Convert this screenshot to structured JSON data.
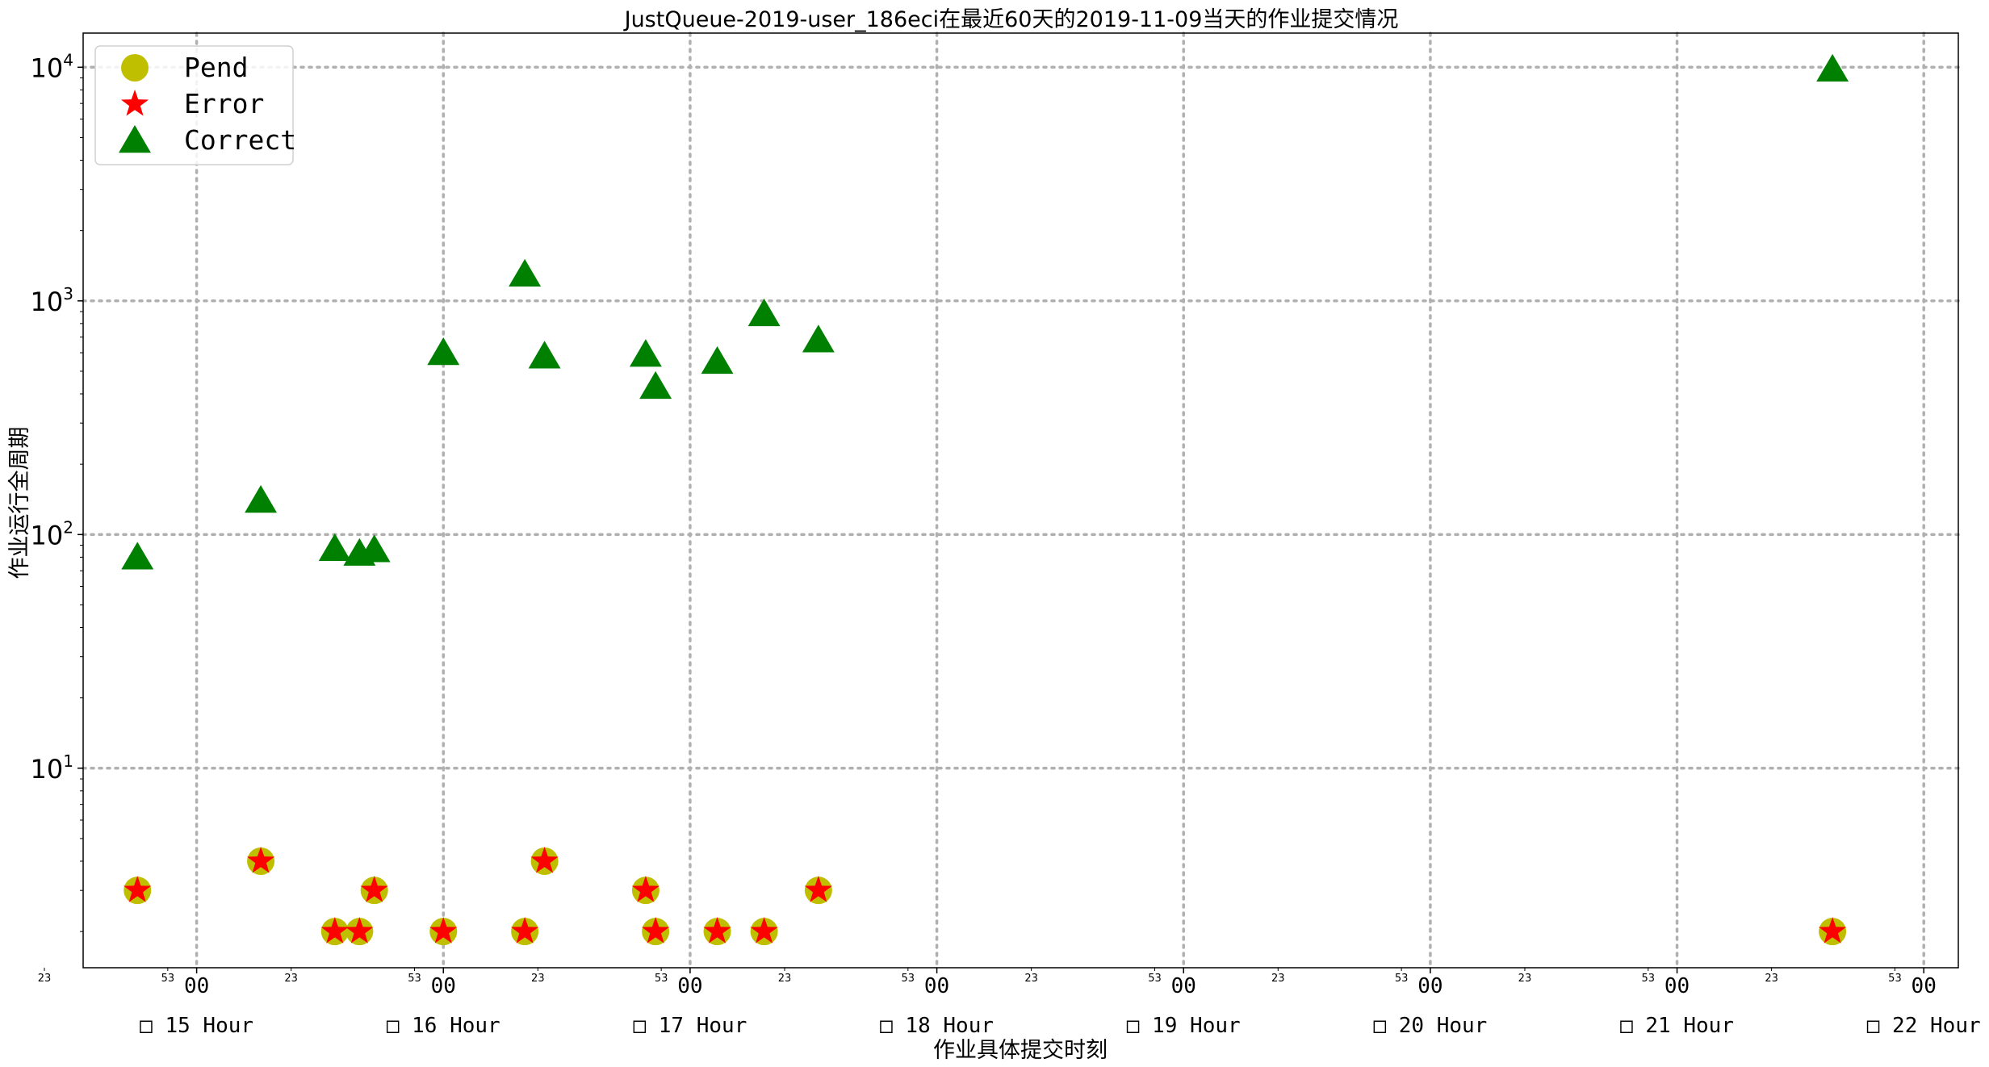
{
  "chart_data": {
    "type": "scatter",
    "title": "JustQueue-2019-user_186eci在最近60天的2019-11-09当天的作业提交情况",
    "xlabel": "作业具体提交时刻",
    "ylabel": "作业运行全周期",
    "yscale": "log",
    "ylim": [
      1.4,
      14000
    ],
    "xlim": [
      14.54,
      22.14
    ],
    "y_ticks": [
      {
        "value": 10,
        "base": "10",
        "exp": "1"
      },
      {
        "value": 100,
        "base": "10",
        "exp": "2"
      },
      {
        "value": 1000,
        "base": "10",
        "exp": "3"
      },
      {
        "value": 10000,
        "base": "10",
        "exp": "4"
      }
    ],
    "x_major_ticks": [
      {
        "value": 15,
        "label": "00"
      },
      {
        "value": 16,
        "label": "00"
      },
      {
        "value": 17,
        "label": "00"
      },
      {
        "value": 18,
        "label": "00"
      },
      {
        "value": 19,
        "label": "00"
      },
      {
        "value": 20,
        "label": "00"
      },
      {
        "value": 21,
        "label": "00"
      },
      {
        "value": 22,
        "label": "00"
      }
    ],
    "x_minor_ticks": [
      {
        "value": 14.383,
        "label": "23"
      },
      {
        "value": 14.883,
        "label": "53"
      },
      {
        "value": 15.383,
        "label": "23"
      },
      {
        "value": 15.883,
        "label": "53"
      },
      {
        "value": 16.383,
        "label": "23"
      },
      {
        "value": 16.883,
        "label": "53"
      },
      {
        "value": 17.383,
        "label": "23"
      },
      {
        "value": 17.883,
        "label": "53"
      },
      {
        "value": 18.383,
        "label": "23"
      },
      {
        "value": 18.883,
        "label": "53"
      },
      {
        "value": 19.383,
        "label": "23"
      },
      {
        "value": 19.883,
        "label": "53"
      },
      {
        "value": 20.383,
        "label": "23"
      },
      {
        "value": 20.883,
        "label": "53"
      },
      {
        "value": 21.383,
        "label": "23"
      },
      {
        "value": 21.883,
        "label": "53"
      }
    ],
    "x_hour_labels": [
      {
        "value": 15,
        "label": "□ 15 Hour"
      },
      {
        "value": 16,
        "label": "□ 16 Hour"
      },
      {
        "value": 17,
        "label": "□ 17 Hour"
      },
      {
        "value": 18,
        "label": "□ 18 Hour"
      },
      {
        "value": 19,
        "label": "□ 19 Hour"
      },
      {
        "value": 20,
        "label": "□ 20 Hour"
      },
      {
        "value": 21,
        "label": "□ 21 Hour"
      },
      {
        "value": 22,
        "label": "□ 22 Hour"
      }
    ],
    "legend": {
      "position": "top-left"
    },
    "grid": true,
    "series": [
      {
        "name": "Pend",
        "marker": "circle",
        "color": "#bfbf00",
        "points": [
          {
            "x": 14.76,
            "y": 3
          },
          {
            "x": 15.26,
            "y": 4
          },
          {
            "x": 15.56,
            "y": 2
          },
          {
            "x": 15.66,
            "y": 2
          },
          {
            "x": 15.72,
            "y": 3
          },
          {
            "x": 16.0,
            "y": 2
          },
          {
            "x": 16.33,
            "y": 2
          },
          {
            "x": 16.41,
            "y": 4
          },
          {
            "x": 16.82,
            "y": 3
          },
          {
            "x": 16.86,
            "y": 2
          },
          {
            "x": 17.11,
            "y": 2
          },
          {
            "x": 17.3,
            "y": 2
          },
          {
            "x": 17.52,
            "y": 3
          },
          {
            "x": 21.63,
            "y": 2
          }
        ]
      },
      {
        "name": "Error",
        "marker": "star",
        "color": "#ff0000",
        "points": [
          {
            "x": 14.76,
            "y": 3
          },
          {
            "x": 15.26,
            "y": 4
          },
          {
            "x": 15.56,
            "y": 2
          },
          {
            "x": 15.66,
            "y": 2
          },
          {
            "x": 15.72,
            "y": 3
          },
          {
            "x": 16.0,
            "y": 2
          },
          {
            "x": 16.33,
            "y": 2
          },
          {
            "x": 16.41,
            "y": 4
          },
          {
            "x": 16.82,
            "y": 3
          },
          {
            "x": 16.86,
            "y": 2
          },
          {
            "x": 17.11,
            "y": 2
          },
          {
            "x": 17.3,
            "y": 2
          },
          {
            "x": 17.52,
            "y": 3
          },
          {
            "x": 21.63,
            "y": 2
          }
        ]
      },
      {
        "name": "Correct",
        "marker": "triangle",
        "color": "#008000",
        "points": [
          {
            "x": 14.76,
            "y": 80
          },
          {
            "x": 15.26,
            "y": 140
          },
          {
            "x": 15.56,
            "y": 87
          },
          {
            "x": 15.66,
            "y": 83
          },
          {
            "x": 15.72,
            "y": 86
          },
          {
            "x": 16.0,
            "y": 600
          },
          {
            "x": 16.33,
            "y": 1300
          },
          {
            "x": 16.41,
            "y": 580
          },
          {
            "x": 16.82,
            "y": 590
          },
          {
            "x": 16.86,
            "y": 430
          },
          {
            "x": 17.11,
            "y": 550
          },
          {
            "x": 17.3,
            "y": 880
          },
          {
            "x": 17.52,
            "y": 680
          },
          {
            "x": 21.63,
            "y": 9800
          }
        ]
      }
    ]
  }
}
